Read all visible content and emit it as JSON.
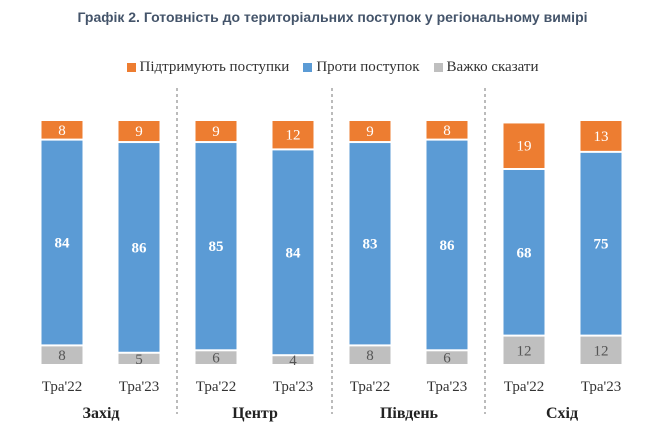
{
  "title": "Графік 2. Готовність до територіальних поступок у регіональному вимірі",
  "chart_data": {
    "type": "bar",
    "stacked": true,
    "categories": [
      "Тра'22",
      "Тра'23",
      "Тра'22",
      "Тра'23",
      "Тра'22",
      "Тра'23",
      "Тра'22",
      "Тра'23"
    ],
    "groups": [
      "Захід",
      "Центр",
      "Південь",
      "Схід"
    ],
    "series": [
      {
        "name": "Важко сказати",
        "color": "#bfbfbf",
        "values": [
          8,
          5,
          6,
          4,
          8,
          6,
          12,
          12
        ]
      },
      {
        "name": "Проти поступок",
        "color": "#5b9bd5",
        "values": [
          84,
          86,
          85,
          84,
          83,
          86,
          68,
          75
        ]
      },
      {
        "name": "Підтримують поступки",
        "color": "#ed7d31",
        "values": [
          8,
          9,
          9,
          12,
          9,
          8,
          19,
          13
        ]
      }
    ],
    "legend": [
      "Підтримують поступки",
      "Проти поступок",
      "Важко сказати"
    ],
    "legend_position": "top",
    "ylim": [
      0,
      100
    ],
    "grid": false
  }
}
